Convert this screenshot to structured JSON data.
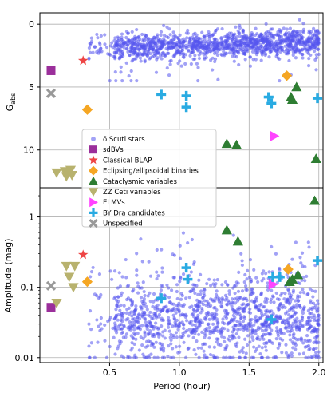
{
  "chart_data": [
    {
      "type": "scatter",
      "panel": "top",
      "title": "",
      "xlabel": "",
      "ylabel": "G_abs",
      "ylabel_main": "G",
      "ylabel_sub": "abs",
      "xlim": [
        0.0,
        2.03
      ],
      "ylim": [
        13.0,
        -0.9
      ],
      "y_inverted": true,
      "grid": true,
      "x_ticks": [
        0.5,
        1.0,
        1.5,
        2.0
      ],
      "y_ticks": [
        0,
        5,
        10
      ],
      "y_tick_labels": [
        "0",
        "5",
        "10"
      ],
      "series": [
        {
          "name": "δ Scuti stars",
          "marker": "circle",
          "color": "#5555ee",
          "x_range": [
            0.5,
            2.0
          ],
          "y_range": [
            -0.5,
            3.5
          ],
          "note_count_approx": 1500
        },
        {
          "name": "sdBVs",
          "marker": "square",
          "color": "#9b2f9b",
          "points": [
            [
              0.08,
              3.7
            ]
          ]
        },
        {
          "name": "Classical BLAP",
          "marker": "star",
          "color": "#ee4444",
          "points": [
            [
              0.31,
              2.9
            ]
          ]
        },
        {
          "name": "Eclipsing/ellipsoidal binaries",
          "marker": "diamond",
          "color": "#f5a623",
          "points": [
            [
              0.34,
              6.8
            ],
            [
              1.77,
              4.1
            ]
          ]
        },
        {
          "name": "Cataclysmic variables",
          "marker": "triangle-up",
          "color": "#2e7d32",
          "points": [
            [
              1.34,
              9.5
            ],
            [
              1.41,
              9.6
            ],
            [
              1.8,
              5.8
            ],
            [
              1.81,
              6.0
            ],
            [
              1.84,
              5.0
            ],
            [
              1.98,
              10.7
            ]
          ]
        },
        {
          "name": "ZZ Ceti variables",
          "marker": "triangle-down",
          "color": "#b8b26e",
          "points": [
            [
              0.12,
              11.8
            ],
            [
              0.18,
              11.7
            ],
            [
              0.19,
              12.1
            ],
            [
              0.22,
              11.6
            ],
            [
              0.23,
              12.0
            ]
          ]
        },
        {
          "name": "ELMVs",
          "marker": "triangle-right",
          "color": "#ff44ff",
          "points": [
            [
              1.68,
              8.9
            ]
          ]
        },
        {
          "name": "BY Dra candidates",
          "marker": "plus",
          "color": "#29abe2",
          "points": [
            [
              0.87,
              5.6
            ],
            [
              1.05,
              5.7
            ],
            [
              1.05,
              6.6
            ],
            [
              1.64,
              5.8
            ],
            [
              1.66,
              6.3
            ],
            [
              1.99,
              5.9
            ]
          ]
        },
        {
          "name": "Unspecified",
          "marker": "x",
          "color": "#999999",
          "points": [
            [
              0.08,
              5.5
            ]
          ]
        }
      ]
    },
    {
      "type": "scatter",
      "panel": "bottom",
      "title": "",
      "xlabel": "Period (hour)",
      "ylabel": "Amplitude (mag)",
      "xlim": [
        0.0,
        2.03
      ],
      "ylim": [
        0.0085,
        2.6
      ],
      "log_y": true,
      "grid": true,
      "x_ticks": [
        0.5,
        1.0,
        1.5,
        2.0
      ],
      "x_tick_labels": [
        "0.5",
        "1.0",
        "1.5",
        "2.0"
      ],
      "y_ticks": [
        0.01,
        0.1,
        1
      ],
      "y_tick_labels": [
        "0.01",
        "0.1",
        "1"
      ],
      "series": [
        {
          "name": "δ Scuti stars",
          "marker": "circle",
          "color": "#5555ee",
          "x_range": [
            0.5,
            2.0
          ],
          "y_range": [
            0.01,
            0.6
          ],
          "note_count_approx": 1500
        },
        {
          "name": "sdBVs",
          "marker": "square",
          "color": "#9b2f9b",
          "points": [
            [
              0.08,
              0.052
            ]
          ]
        },
        {
          "name": "Classical BLAP",
          "marker": "star",
          "color": "#ee4444",
          "points": [
            [
              0.31,
              0.29
            ]
          ]
        },
        {
          "name": "Eclipsing/ellipsoidal binaries",
          "marker": "diamond",
          "color": "#f5a623",
          "points": [
            [
              0.34,
              0.12
            ],
            [
              1.78,
              0.18
            ]
          ]
        },
        {
          "name": "Cataclysmic variables",
          "marker": "triangle-up",
          "color": "#2e7d32",
          "points": [
            [
              1.34,
              0.65
            ],
            [
              1.42,
              0.45
            ],
            [
              1.81,
              0.13
            ],
            [
              1.85,
              0.15
            ],
            [
              1.79,
              0.12
            ],
            [
              1.97,
              1.7
            ]
          ]
        },
        {
          "name": "ZZ Ceti variables",
          "marker": "triangle-down",
          "color": "#b8b26e",
          "points": [
            [
              0.12,
              0.06
            ],
            [
              0.19,
              0.2
            ],
            [
              0.21,
              0.14
            ],
            [
              0.25,
              0.2
            ],
            [
              0.24,
              0.1
            ]
          ]
        },
        {
          "name": "ELMVs",
          "marker": "triangle-right",
          "color": "#ff44ff",
          "points": [
            [
              1.67,
              0.11
            ]
          ]
        },
        {
          "name": "BY Dra candidates",
          "marker": "plus",
          "color": "#29abe2",
          "points": [
            [
              0.87,
              0.07
            ],
            [
              1.05,
              0.19
            ],
            [
              1.06,
              0.13
            ],
            [
              1.67,
              0.14
            ],
            [
              1.72,
              0.14
            ],
            [
              1.99,
              0.24
            ],
            [
              1.66,
              0.035
            ]
          ]
        },
        {
          "name": "Unspecified",
          "marker": "x",
          "color": "#999999",
          "points": [
            [
              0.08,
              0.105
            ]
          ]
        }
      ]
    }
  ],
  "legend": {
    "placement": "center-left",
    "entries": [
      {
        "label": "δ Scuti stars",
        "marker": "circle",
        "color": "#5555ee"
      },
      {
        "label": "sdBVs",
        "marker": "square",
        "color": "#9b2f9b"
      },
      {
        "label": "Classical BLAP",
        "marker": "star",
        "color": "#ee4444"
      },
      {
        "label": "Eclipsing/ellipsoidal binaries",
        "marker": "diamond",
        "color": "#f5a623"
      },
      {
        "label": "Cataclysmic variables",
        "marker": "triangle-up",
        "color": "#2e7d32"
      },
      {
        "label": "ZZ Ceti variables",
        "marker": "triangle-down",
        "color": "#b8b26e"
      },
      {
        "label": "ELMVs",
        "marker": "triangle-right",
        "color": "#ff44ff"
      },
      {
        "label": "BY Dra candidates",
        "marker": "plus",
        "color": "#29abe2"
      },
      {
        "label": "Unspecified",
        "marker": "x",
        "color": "#999999"
      }
    ]
  }
}
